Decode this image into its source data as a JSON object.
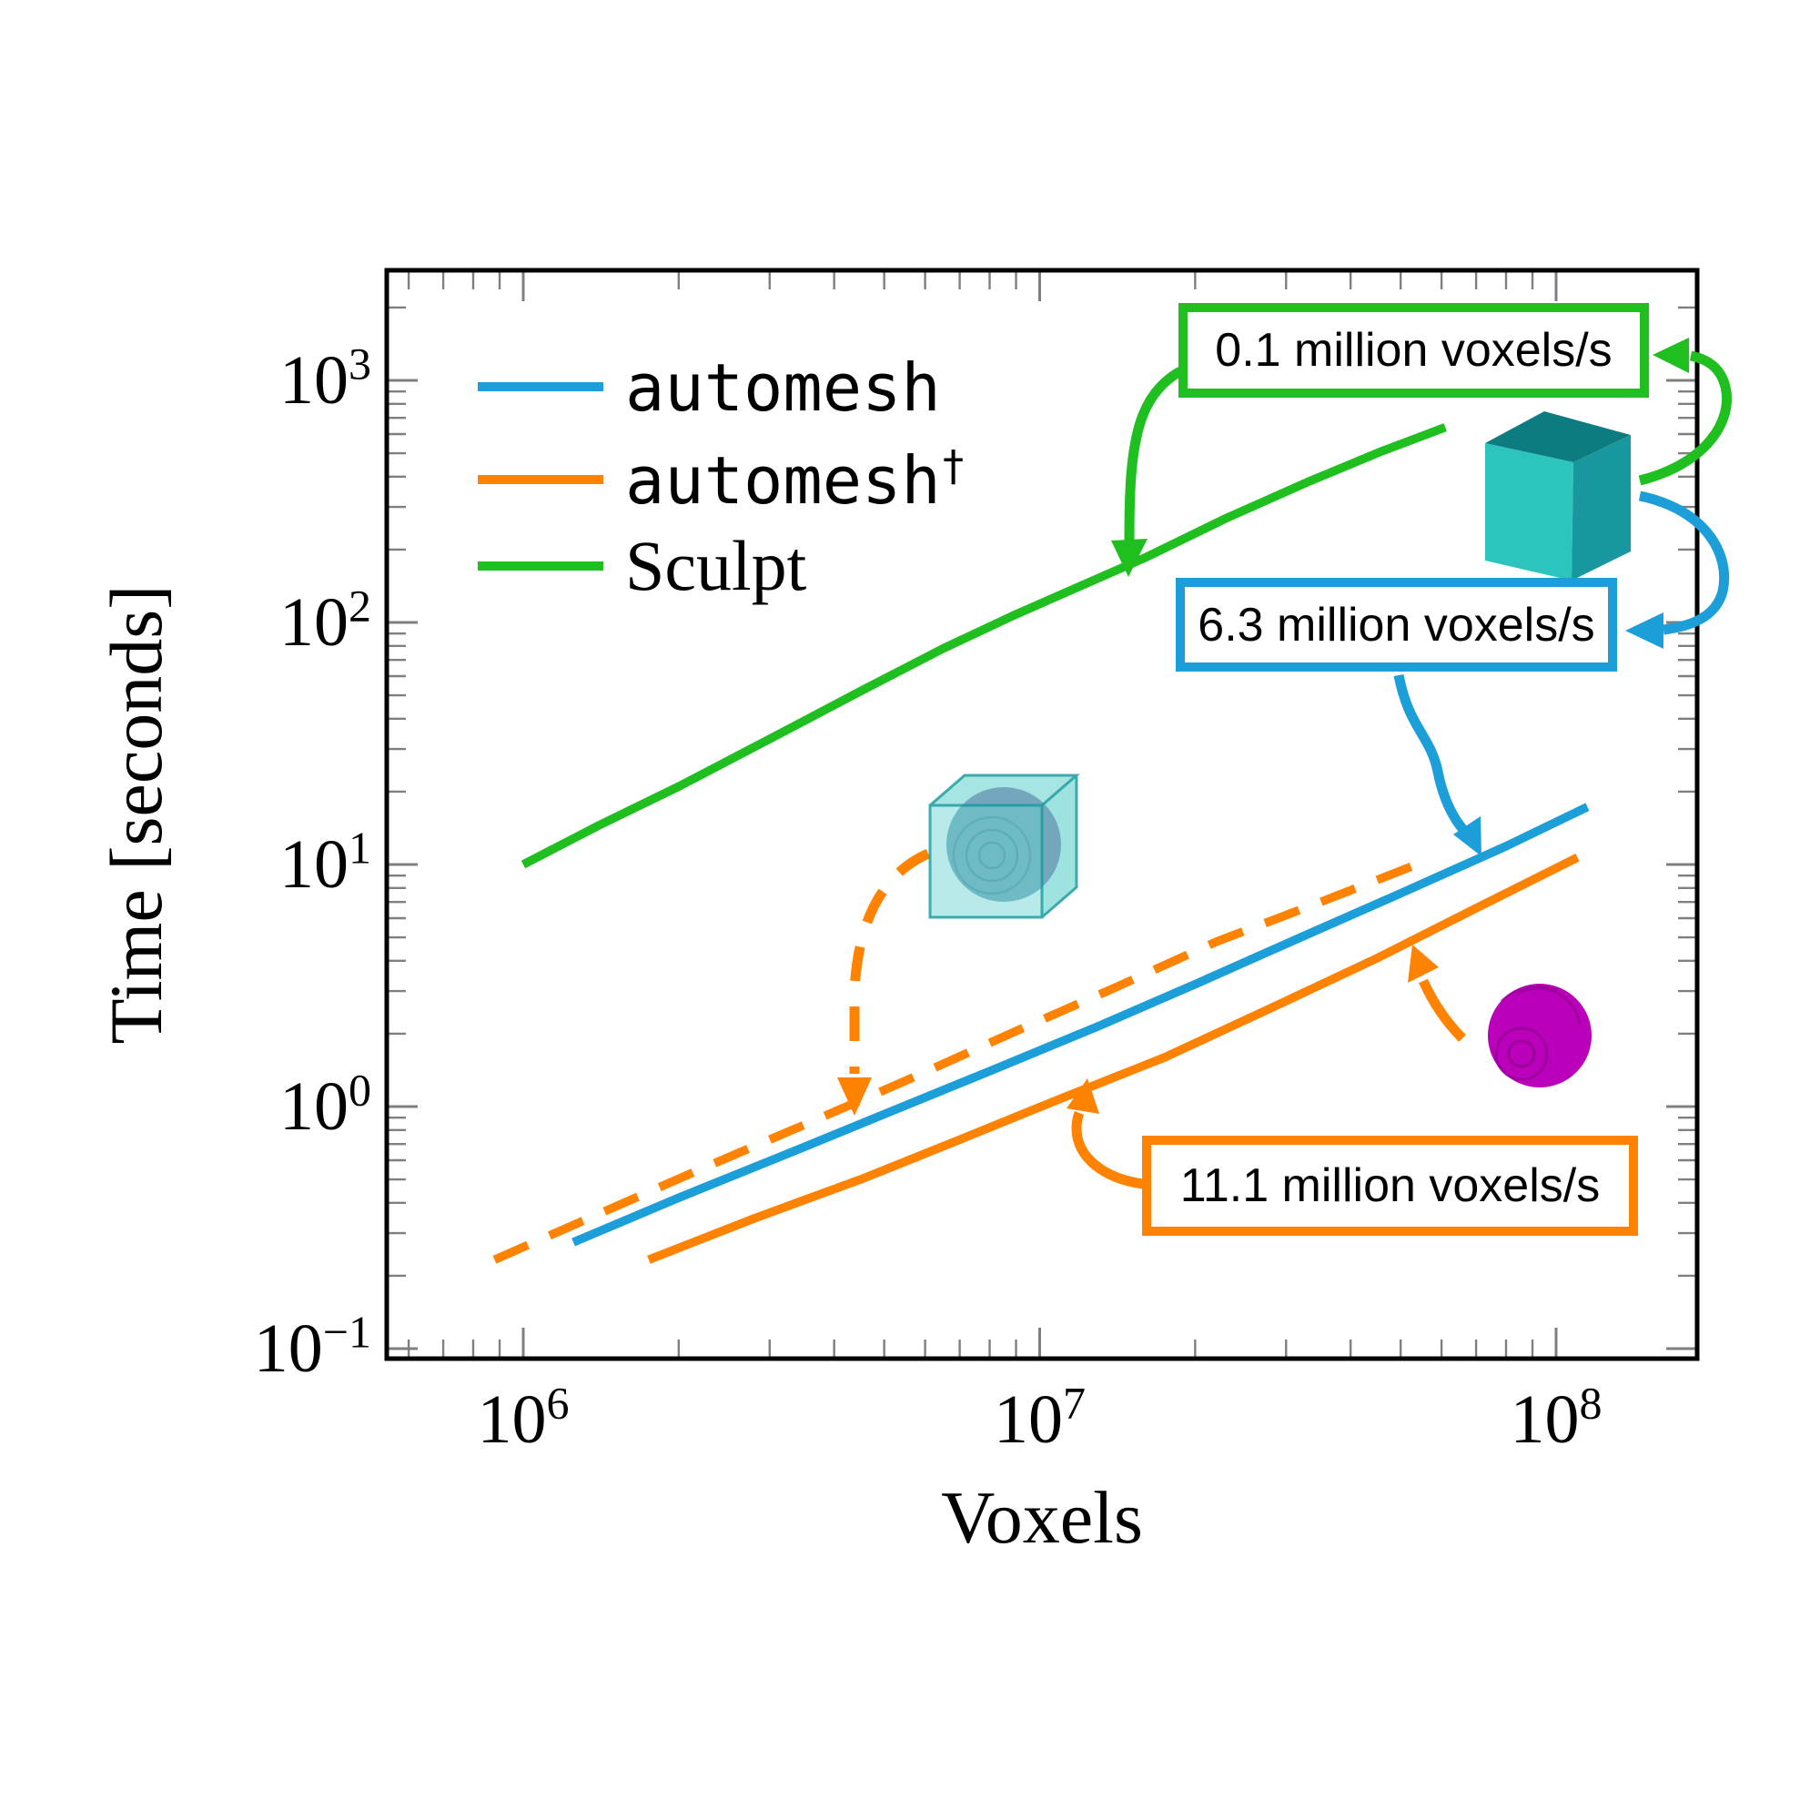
{
  "figure": {
    "description": "Log-log benchmark plot of meshing time versus number of voxels for automesh, automesh-dagger and Sculpt"
  },
  "colors": {
    "automesh_blue": "#1c9ed9",
    "automesh_dagger_orange": "#ff8200",
    "sculpt_green": "#1fbf1f",
    "frame_black": "#000000",
    "tick_gray": "#7f7f7f",
    "text_black": "#000000",
    "cube_teal_light": "#2cc4bc",
    "cube_teal_mid": "#18989e",
    "cube_teal_dark": "#0d7c80",
    "ghost_cube_teal": "#5fd0cc",
    "inner_sphere_blue": "#6da0b8",
    "inner_sphere_line": "#4f86a0",
    "sphere_magenta": "#bb00bb",
    "sphere_magenta_dark": "#8d008d"
  },
  "axes": {
    "x": {
      "label": "Voxels",
      "scale": "log",
      "tick_base": "10",
      "tick_exponents": [
        "6",
        "7",
        "8"
      ]
    },
    "y": {
      "label": "Time [seconds]",
      "scale": "log",
      "tick_base": "10",
      "tick_exponents": [
        "3",
        "2",
        "1",
        "0",
        "−1"
      ]
    }
  },
  "legend": [
    {
      "label": "automesh",
      "sup": "",
      "color_key": "automesh_blue"
    },
    {
      "label": "automesh",
      "sup": "†",
      "color_key": "automesh_dagger_orange"
    },
    {
      "label": "Sculpt",
      "sup": "",
      "color_key": "sculpt_green"
    }
  ],
  "annotations": [
    {
      "text": "0.1 million voxels/s",
      "color_key": "sculpt_green",
      "series": "Sculpt"
    },
    {
      "text": "6.3 million voxels/s",
      "color_key": "automesh_blue",
      "series": "automesh"
    },
    {
      "text": "11.1 million voxels/s",
      "color_key": "automesh_dagger_orange",
      "series": "automesh†"
    }
  ],
  "icons": {
    "cube": "teal-voxel-cube",
    "sphere_in_cube": "sphere-within-cube",
    "sphere": "magenta-voxel-sphere"
  },
  "chart_data": {
    "type": "line",
    "title": "",
    "xlabel": "Voxels",
    "ylabel": "Time [seconds]",
    "x_scale": "log",
    "y_scale": "log",
    "xlim": [
      550000,
      186000000
    ],
    "ylim": [
      0.091,
      2820
    ],
    "grid": false,
    "legend_position": "top-left-inside",
    "series": [
      {
        "name": "automesh",
        "color": "#1c9ed9",
        "style": "solid",
        "x": [
          1250000,
          2000000,
          3200000,
          5000000,
          8000000,
          13000000,
          20000000,
          32000000,
          50000000,
          80000000,
          115000000
        ],
        "y": [
          0.275,
          0.42,
          0.63,
          0.93,
          1.4,
          2.15,
          3.2,
          5.0,
          7.6,
          11.9,
          17.3
        ]
      },
      {
        "name": "automesh† (sphere within cube)",
        "color": "#ff8200",
        "style": "dashed",
        "x": [
          880000,
          1400000,
          2200000,
          3500000,
          5600000,
          9000000,
          14000000,
          22000000,
          35000000,
          56000000
        ],
        "y": [
          0.233,
          0.36,
          0.55,
          0.84,
          1.3,
          2.05,
          3.1,
          4.8,
          7.0,
          10.35
        ]
      },
      {
        "name": "automesh†",
        "color": "#ff8200",
        "style": "solid",
        "x": [
          1750000,
          2800000,
          4500000,
          7000000,
          11000000,
          17500000,
          28000000,
          45000000,
          70000000,
          110000000
        ],
        "y": [
          0.233,
          0.345,
          0.5,
          0.73,
          1.08,
          1.6,
          2.55,
          4.1,
          6.6,
          10.7
        ]
      },
      {
        "name": "Sculpt",
        "color": "#1fbf1f",
        "style": "solid",
        "x": [
          1000000,
          1400000,
          2000000,
          3000000,
          4500000,
          6500000,
          9000000,
          13500000,
          16000000,
          23000000,
          33000000,
          46000000,
          61000000
        ],
        "y": [
          10,
          14.5,
          21,
          33,
          52,
          78,
          108,
          158,
          185,
          270,
          380,
          510,
          640
        ]
      }
    ],
    "rate_annotations": [
      {
        "text": "0.1 million voxels/s",
        "applies_to": "Sculpt"
      },
      {
        "text": "6.3 million voxels/s",
        "applies_to": "automesh"
      },
      {
        "text": "11.1 million voxels/s",
        "applies_to": "automesh†"
      }
    ]
  }
}
